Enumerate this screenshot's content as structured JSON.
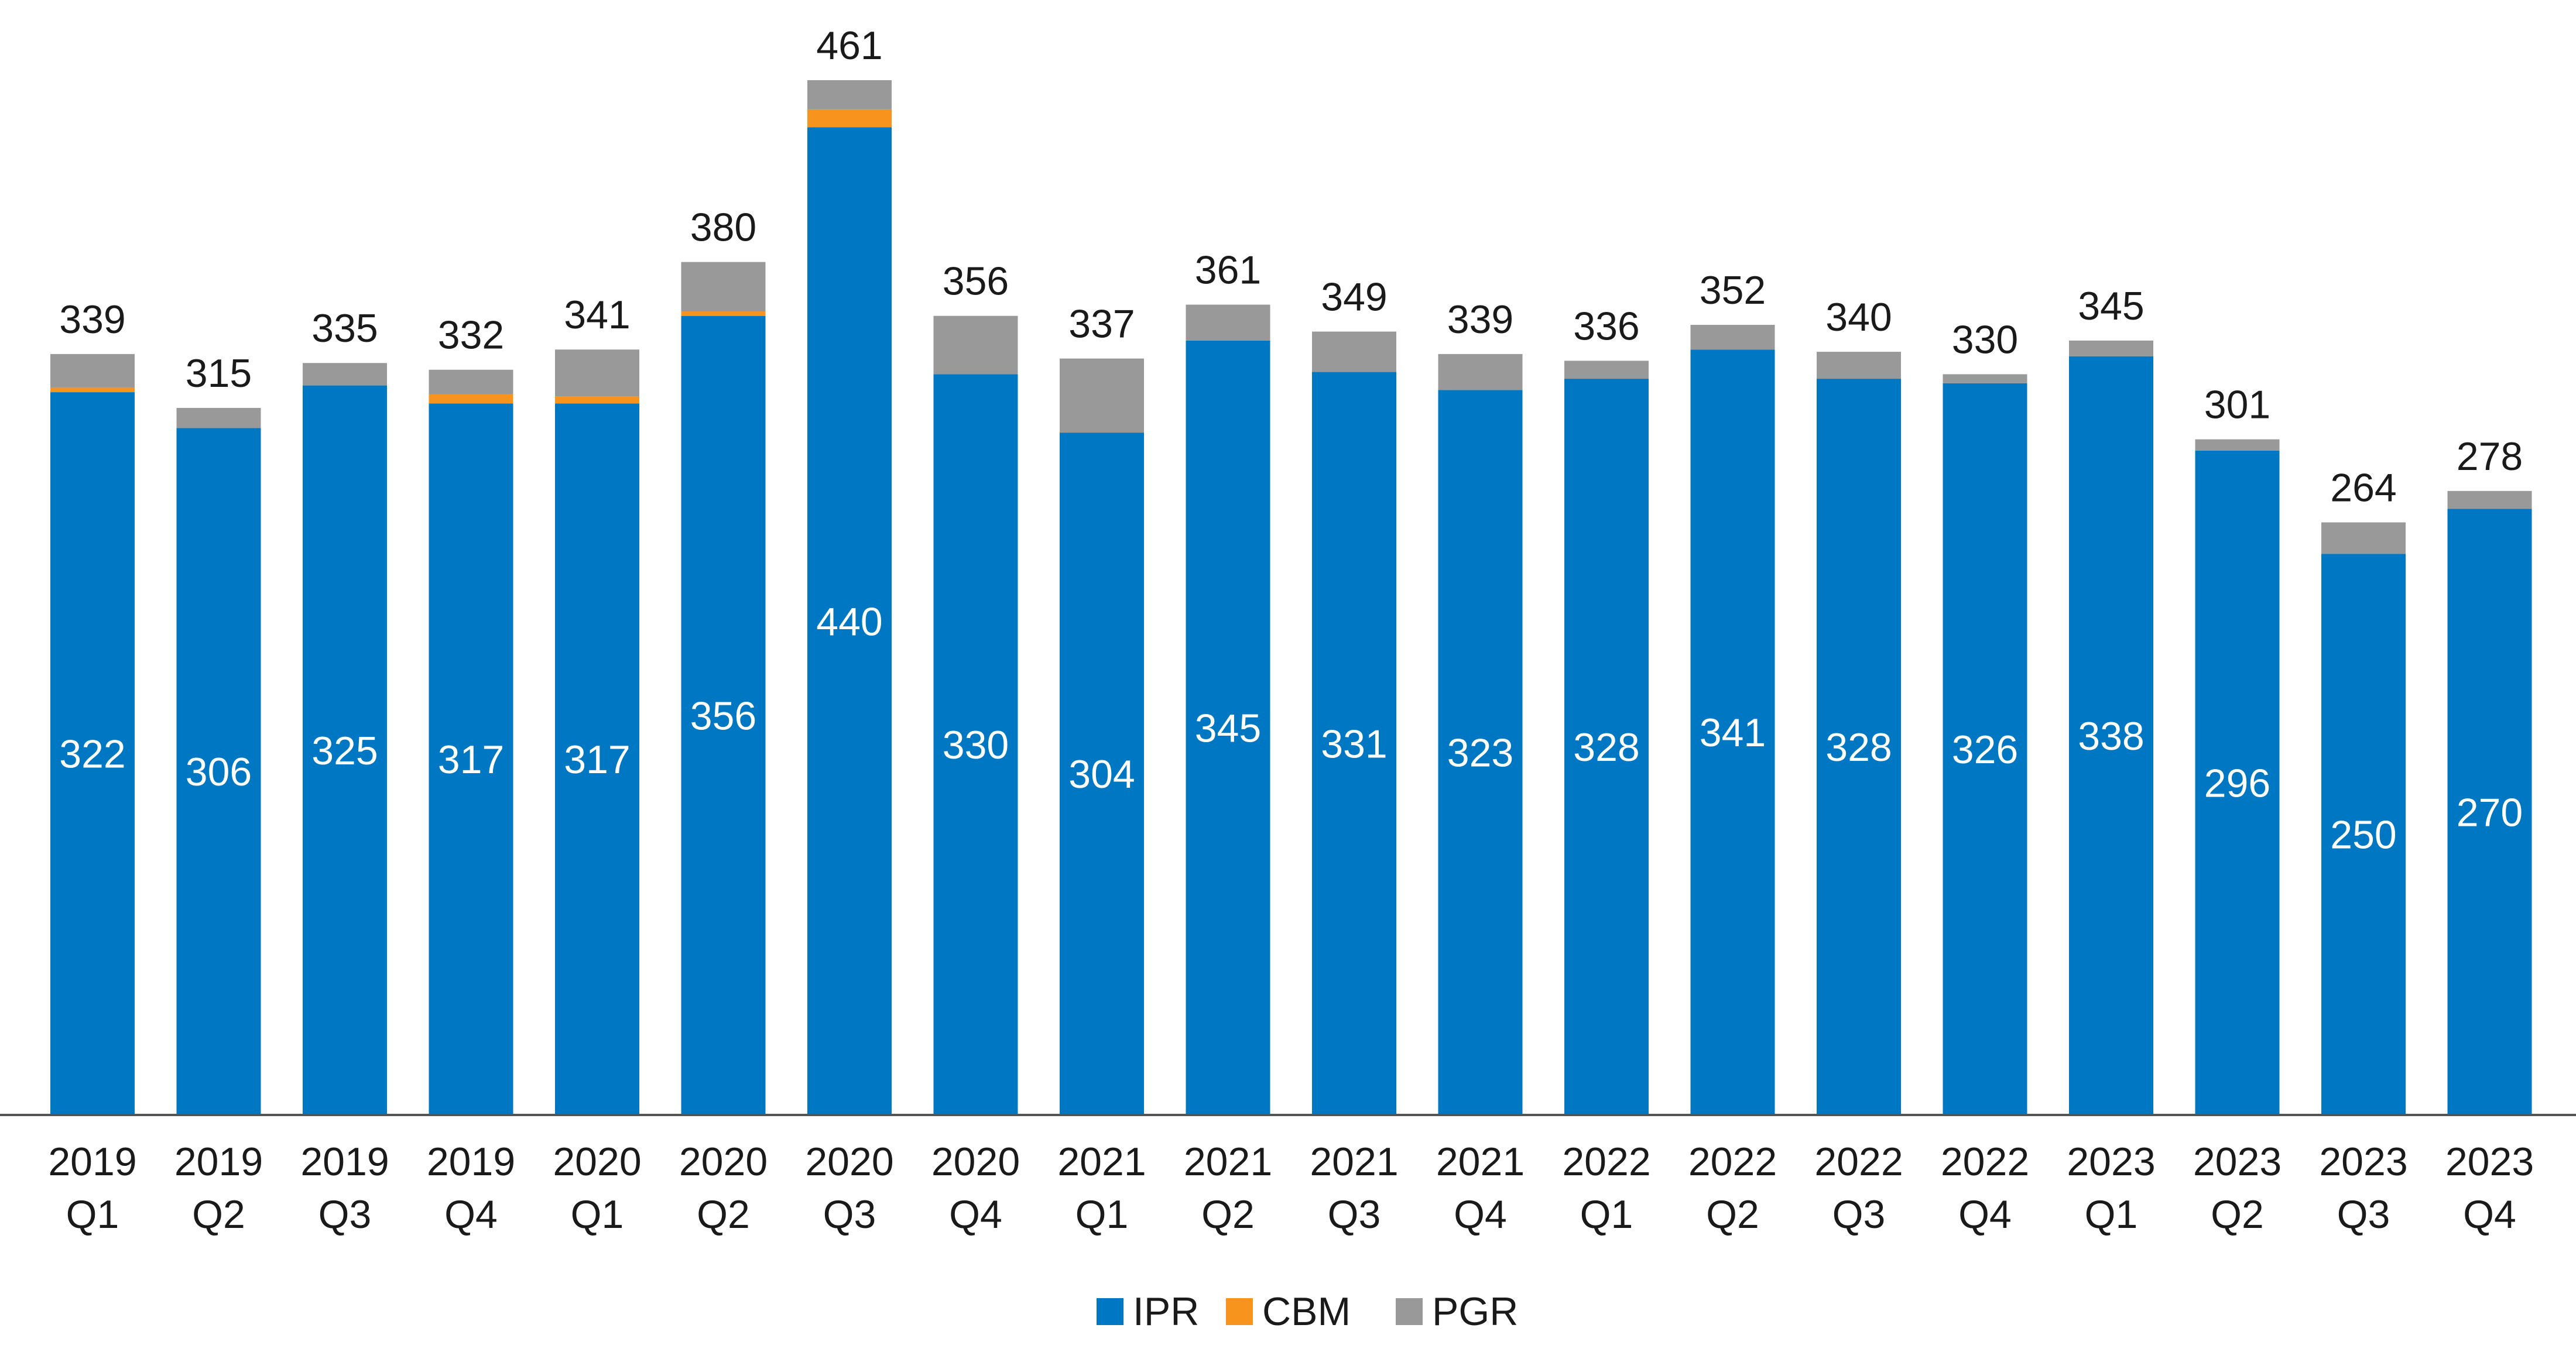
{
  "chart_data": {
    "type": "bar",
    "stacked": true,
    "categories": [
      [
        "2019",
        "Q1"
      ],
      [
        "2019",
        "Q2"
      ],
      [
        "2019",
        "Q3"
      ],
      [
        "2019",
        "Q4"
      ],
      [
        "2020",
        "Q1"
      ],
      [
        "2020",
        "Q2"
      ],
      [
        "2020",
        "Q3"
      ],
      [
        "2020",
        "Q4"
      ],
      [
        "2021",
        "Q1"
      ],
      [
        "2021",
        "Q2"
      ],
      [
        "2021",
        "Q3"
      ],
      [
        "2021",
        "Q4"
      ],
      [
        "2022",
        "Q1"
      ],
      [
        "2022",
        "Q2"
      ],
      [
        "2022",
        "Q3"
      ],
      [
        "2022",
        "Q4"
      ],
      [
        "2023",
        "Q1"
      ],
      [
        "2023",
        "Q2"
      ],
      [
        "2023",
        "Q3"
      ],
      [
        "2023",
        "Q4"
      ]
    ],
    "series": [
      {
        "name": "IPR",
        "color": "#0077c2",
        "values": [
          322,
          306,
          325,
          317,
          317,
          356,
          440,
          330,
          304,
          345,
          331,
          323,
          328,
          341,
          328,
          326,
          338,
          296,
          250,
          270
        ]
      },
      {
        "name": "CBM",
        "color": "#f7941d",
        "values": [
          2,
          0,
          0,
          4,
          3,
          2,
          8,
          0,
          0,
          0,
          0,
          0,
          0,
          0,
          0,
          0,
          0,
          0,
          0,
          0
        ]
      },
      {
        "name": "PGR",
        "color": "#999999",
        "values": [
          15,
          9,
          10,
          11,
          21,
          22,
          13,
          26,
          33,
          16,
          18,
          16,
          8,
          11,
          12,
          4,
          7,
          5,
          14,
          8
        ]
      }
    ],
    "totals": [
      339,
      315,
      335,
      332,
      341,
      380,
      461,
      356,
      337,
      361,
      349,
      339,
      336,
      352,
      340,
      330,
      345,
      301,
      264,
      278
    ],
    "ylim": [
      0,
      480
    ],
    "grid": false,
    "legend_position": "bottom-center",
    "title": "",
    "xlabel": "",
    "ylabel": ""
  }
}
